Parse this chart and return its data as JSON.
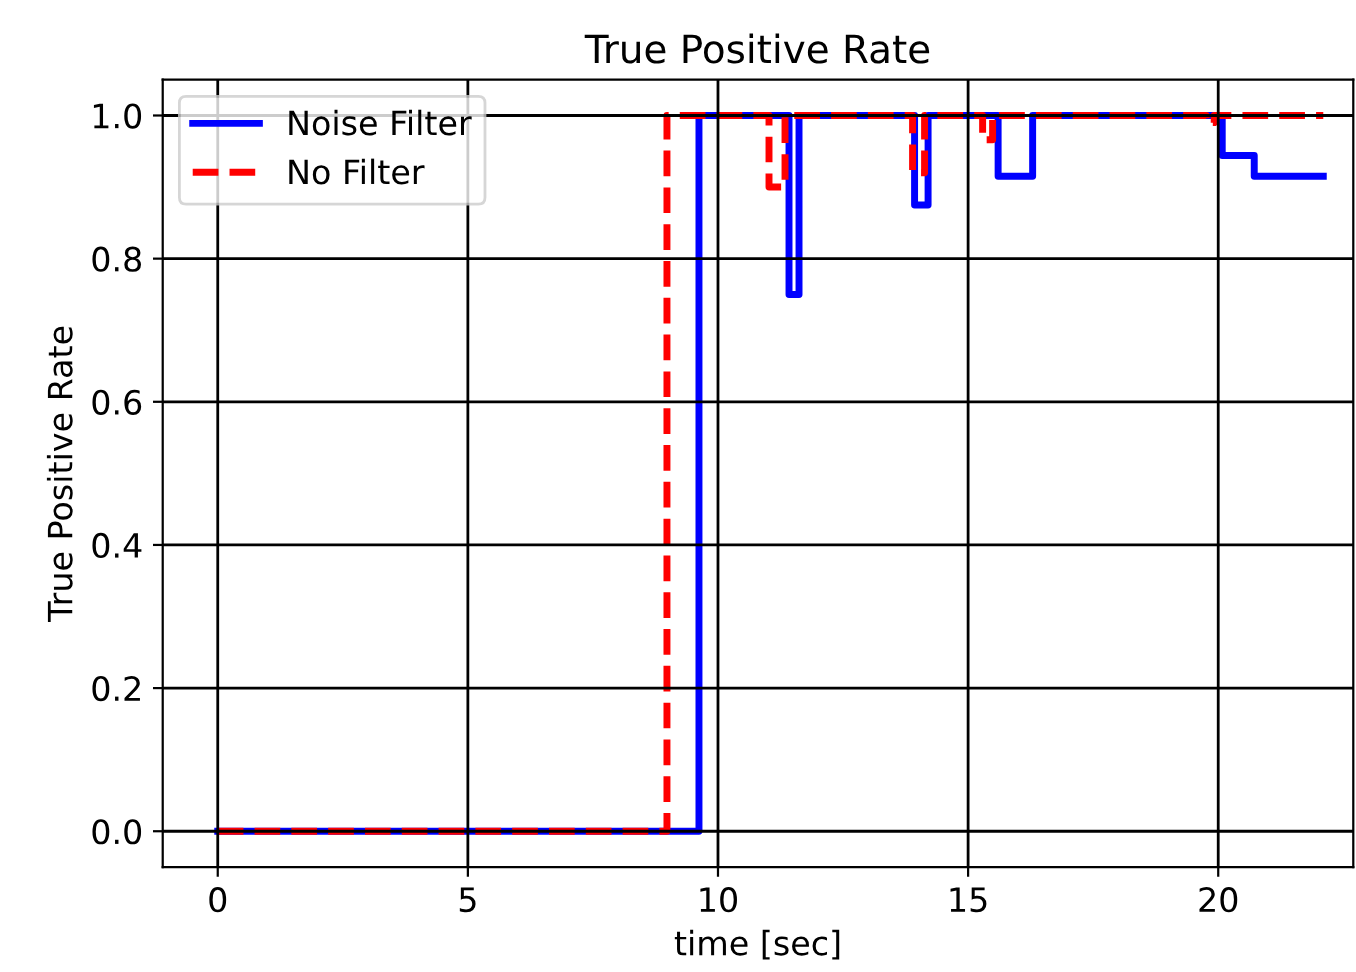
{
  "chart_data": {
    "type": "step",
    "title": "True Positive Rate",
    "xlabel": "time [sec]",
    "ylabel": "True Positive Rate",
    "xlim": [
      -1.1,
      22.7
    ],
    "ylim": [
      -0.05,
      1.05
    ],
    "xticks": [
      0,
      5,
      10,
      15,
      20
    ],
    "yticks": [
      {
        "value": 0,
        "label": "0.0"
      },
      {
        "value": 0.2,
        "label": "0.2"
      },
      {
        "value": 0.4,
        "label": "0.4"
      },
      {
        "value": 0.6,
        "label": "0.6"
      },
      {
        "value": 0.8,
        "label": "0.8"
      },
      {
        "value": 1,
        "label": "1.0"
      }
    ],
    "grid": true,
    "legend": "top left",
    "series": [
      {
        "name": "Noise Filter",
        "color": "#0000ff",
        "line_style": "solid",
        "x": [
          0,
          9.62,
          11.42,
          11.62,
          13.93,
          14.2,
          15.6,
          16.29,
          20.08,
          20.72,
          22.1
        ],
        "values": [
          0,
          1,
          0.75,
          1,
          0.875,
          1,
          0.915,
          1,
          0.944,
          0.915,
          0.915
        ]
      },
      {
        "name": "No Filter",
        "color": "#ff0000",
        "line_style": "dashed",
        "x": [
          0,
          8.98,
          11.02,
          11.34,
          13.89,
          14.13,
          15.29,
          15.49,
          19.76,
          19.92,
          22.1
        ],
        "values": [
          0,
          1,
          0.9,
          1,
          0.92,
          1,
          0.966,
          1,
          0.99,
          1,
          1
        ]
      }
    ]
  }
}
